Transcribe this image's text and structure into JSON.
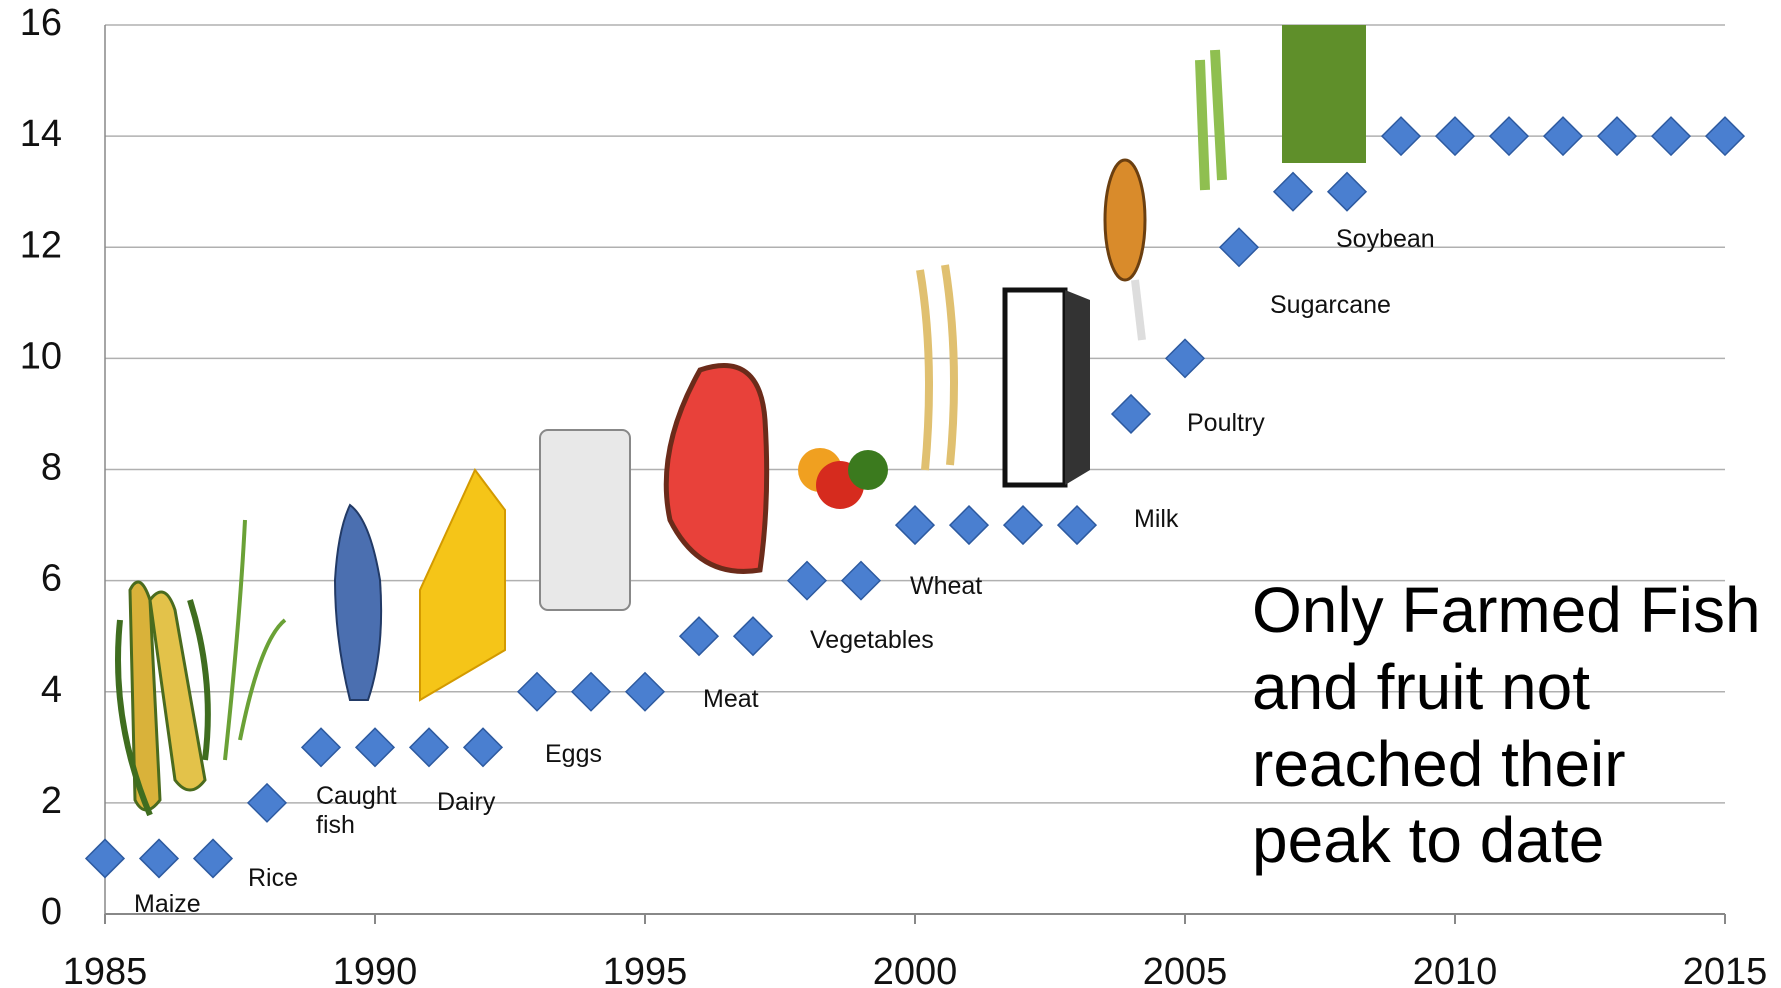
{
  "chart_data": {
    "type": "scatter",
    "x": [
      1985,
      1986,
      1987,
      1988,
      1989,
      1990,
      1991,
      1992,
      1993,
      1994,
      1995,
      1996,
      1997,
      1998,
      1999,
      2000,
      2001,
      2002,
      2003,
      2004,
      2005,
      2006,
      2007,
      2008,
      2009,
      2010,
      2011,
      2012,
      2013,
      2014,
      2015
    ],
    "values": [
      1,
      1,
      1,
      2,
      3,
      3,
      3,
      3,
      4,
      4,
      4,
      5,
      5,
      6,
      6,
      7,
      7,
      7,
      7,
      9,
      10,
      12,
      13,
      13,
      14,
      14,
      14,
      14,
      14,
      14,
      14
    ],
    "color": "#4a7fd0",
    "xlim": [
      1985,
      2015
    ],
    "xticks": [
      1985,
      1990,
      1995,
      2000,
      2005,
      2010,
      2015
    ],
    "ylim": [
      0,
      16
    ],
    "yticks": [
      0,
      2,
      4,
      6,
      8,
      10,
      12,
      14,
      16
    ],
    "grid": true,
    "annotations": [
      "Maize",
      "Rice",
      "Caught fish",
      "Dairy",
      "Eggs",
      "Meat",
      "Vegetables",
      "Wheat",
      "Milk",
      "Poultry",
      "Sugarcane",
      "Soybean"
    ],
    "note": "Only Farmed Fish and fruit not reached their peak to date"
  }
}
